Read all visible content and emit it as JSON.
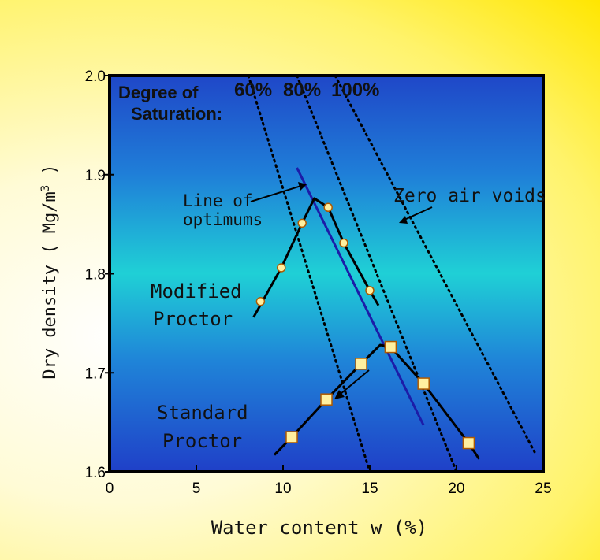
{
  "chart_data": {
    "type": "scatter",
    "xlabel": "Water content w (%)",
    "ylabel": "Dry density ( Mg/m",
    "ylabel_sup": "3",
    "ylabel_tail": " )",
    "xlim": [
      0,
      25
    ],
    "ylim": [
      1.6,
      2.0
    ],
    "x_ticks": [
      0,
      5,
      10,
      15,
      20,
      25
    ],
    "x_tick_labels": [
      "0",
      "5",
      "10",
      "15",
      "20",
      "25"
    ],
    "y_ticks": [
      1.6,
      1.7,
      1.8,
      1.9,
      2.0
    ],
    "y_tick_labels": [
      "1.6",
      "1.7",
      "1.8",
      "1.9",
      "2.0"
    ],
    "series": [
      {
        "name": "Modified Proctor",
        "marker": "circle",
        "points": [
          {
            "x": 8.7,
            "y": 1.772
          },
          {
            "x": 9.9,
            "y": 1.806
          },
          {
            "x": 11.1,
            "y": 1.851
          },
          {
            "x": 12.6,
            "y": 1.867
          },
          {
            "x": 13.5,
            "y": 1.831
          },
          {
            "x": 15.0,
            "y": 1.783
          }
        ],
        "curve": [
          {
            "x": 8.3,
            "y": 1.756
          },
          {
            "x": 9.9,
            "y": 1.806
          },
          {
            "x": 11.1,
            "y": 1.851
          },
          {
            "x": 11.8,
            "y": 1.876
          },
          {
            "x": 12.6,
            "y": 1.867
          },
          {
            "x": 13.5,
            "y": 1.831
          },
          {
            "x": 15.0,
            "y": 1.783
          },
          {
            "x": 15.5,
            "y": 1.768
          }
        ]
      },
      {
        "name": "Standard Proctor",
        "marker": "square",
        "points": [
          {
            "x": 10.5,
            "y": 1.635
          },
          {
            "x": 12.5,
            "y": 1.673
          },
          {
            "x": 14.5,
            "y": 1.709
          },
          {
            "x": 16.2,
            "y": 1.726
          },
          {
            "x": 18.1,
            "y": 1.689
          },
          {
            "x": 20.7,
            "y": 1.629
          }
        ],
        "curve": [
          {
            "x": 9.5,
            "y": 1.617
          },
          {
            "x": 10.5,
            "y": 1.635
          },
          {
            "x": 12.5,
            "y": 1.673
          },
          {
            "x": 14.5,
            "y": 1.709
          },
          {
            "x": 15.6,
            "y": 1.728
          },
          {
            "x": 16.2,
            "y": 1.726
          },
          {
            "x": 18.1,
            "y": 1.689
          },
          {
            "x": 20.7,
            "y": 1.629
          },
          {
            "x": 21.3,
            "y": 1.613
          }
        ]
      }
    ],
    "saturation_lines": [
      {
        "label": "60%",
        "points": [
          {
            "x": 8.0,
            "y": 2.0
          },
          {
            "x": 15.0,
            "y": 1.6
          }
        ]
      },
      {
        "label": "80%",
        "points": [
          {
            "x": 10.8,
            "y": 2.0
          },
          {
            "x": 20.0,
            "y": 1.6
          }
        ]
      },
      {
        "label": "100%",
        "points": [
          {
            "x": 13.0,
            "y": 2.0
          },
          {
            "x": 24.5,
            "y": 1.62
          }
        ]
      }
    ],
    "line_of_optimums": {
      "points": [
        {
          "x": 10.8,
          "y": 1.907
        },
        {
          "x": 18.1,
          "y": 1.647
        }
      ]
    },
    "annotations": {
      "degree_line1": "Degree of",
      "degree_line2": "Saturation:",
      "line_of_optimums_1": "Line of",
      "line_of_optimums_2": "optimums",
      "zero_air_voids": "Zero air voids",
      "modified_1": "Modified",
      "modified_2": "Proctor",
      "standard_1": "Standard",
      "standard_2": "Proctor"
    },
    "grid": false,
    "colors": {
      "background_outer": "#fff36a",
      "plot_top": "#1f47c8",
      "plot_mid": "#1fd0d6",
      "plot_bottom": "#1f40c8",
      "optimum_line": "#1c1ca8",
      "marker_fill": "#fff0a0",
      "marker_stroke": "#b05a00"
    }
  }
}
